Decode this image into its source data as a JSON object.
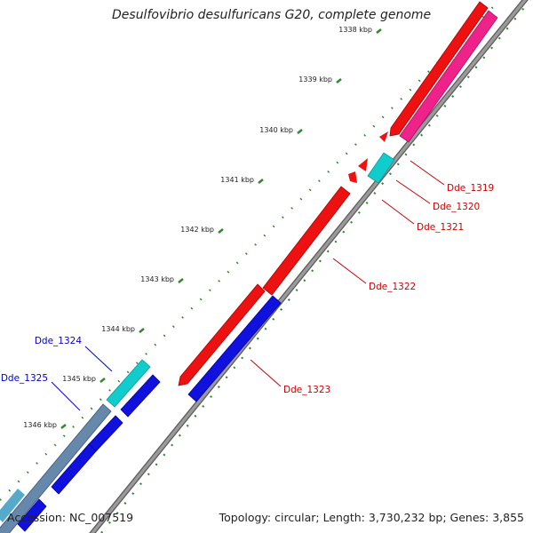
{
  "title": "Desulfovibrio desulfuricans G20, complete genome",
  "footer": {
    "accession": "Accession: NC_007519",
    "topology": "Topology: circular; Length: 3,730,232 bp; Genes: 3,855"
  },
  "colors": {
    "backbone": "#8c8c8c",
    "ticks": "#2d8a2d",
    "gene_red": "#ee1111",
    "gene_pink": "#ee2288",
    "gene_cyan": "#11cccc",
    "gene_blue": "#1111dd",
    "gene_grayblue": "#6688aa",
    "label_red": "#cc0000",
    "label_blue": "#0000cc"
  },
  "ticks": [
    {
      "label": "1338 kbp"
    },
    {
      "label": "1339 kbp"
    },
    {
      "label": "1340 kbp"
    },
    {
      "label": "1341 kbp"
    },
    {
      "label": "1342 kbp"
    },
    {
      "label": "1343 kbp"
    },
    {
      "label": "1344 kbp"
    },
    {
      "label": "1345 kbp"
    },
    {
      "label": "1346 kbp"
    }
  ],
  "gene_labels": [
    {
      "label": "Dde_1319",
      "color": "red"
    },
    {
      "label": "Dde_1320",
      "color": "red"
    },
    {
      "label": "Dde_1321",
      "color": "red"
    },
    {
      "label": "Dde_1322",
      "color": "red"
    },
    {
      "label": "Dde_1323",
      "color": "red"
    },
    {
      "label": "Dde_1324",
      "color": "blue"
    },
    {
      "label": "Dde_1325",
      "color": "blue"
    }
  ]
}
